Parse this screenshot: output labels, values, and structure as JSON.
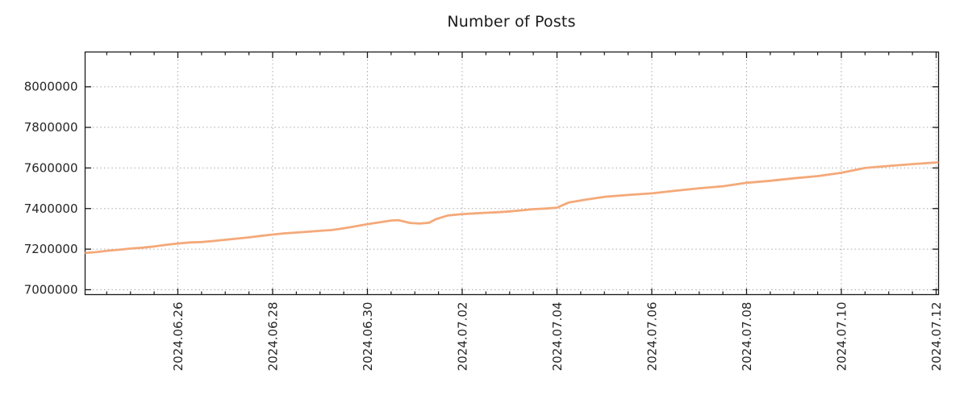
{
  "chart_data": {
    "type": "line",
    "title": "Number of Posts",
    "legend": {
      "show": false
    },
    "grid": {
      "show": true,
      "style": "dotted",
      "color": "#a8a8a8"
    },
    "axis_color": "#1a1a1a",
    "x_axis": {
      "unit": "days since 2024-06-24 00:00",
      "range": [
        0.043,
        18.051
      ],
      "minor_tick_step_days": 0.5,
      "major_ticks": [
        {
          "t": 2,
          "label": "2024.06.26"
        },
        {
          "t": 4,
          "label": "2024.06.28"
        },
        {
          "t": 6,
          "label": "2024.06.30"
        },
        {
          "t": 8,
          "label": "2024.07.02"
        },
        {
          "t": 10,
          "label": "2024.07.04"
        },
        {
          "t": 12,
          "label": "2024.07.06"
        },
        {
          "t": 14,
          "label": "2024.07.08"
        },
        {
          "t": 16,
          "label": "2024.07.10"
        },
        {
          "t": 18,
          "label": "2024.07.12"
        }
      ]
    },
    "y_axis": {
      "range": [
        6976000,
        8171600
      ],
      "major_ticks": [
        {
          "v": 7000000,
          "label": "7000000"
        },
        {
          "v": 7200000,
          "label": "7200000"
        },
        {
          "v": 7400000,
          "label": "7400000"
        },
        {
          "v": 7600000,
          "label": "7600000"
        },
        {
          "v": 7800000,
          "label": "7800000"
        },
        {
          "v": 8000000,
          "label": "8000000"
        }
      ]
    },
    "series": [
      {
        "name": "Number of Posts",
        "color": "#f4a979",
        "points": [
          [
            0.04,
            7181000
          ],
          [
            0.3,
            7186000
          ],
          [
            0.55,
            7193000
          ],
          [
            0.8,
            7198000
          ],
          [
            1.0,
            7203000
          ],
          [
            1.25,
            7207000
          ],
          [
            1.5,
            7213000
          ],
          [
            1.75,
            7221000
          ],
          [
            2.0,
            7228000
          ],
          [
            2.25,
            7233000
          ],
          [
            2.5,
            7235000
          ],
          [
            2.75,
            7240000
          ],
          [
            3.0,
            7246000
          ],
          [
            3.25,
            7252000
          ],
          [
            3.5,
            7258000
          ],
          [
            3.75,
            7265000
          ],
          [
            4.0,
            7272000
          ],
          [
            4.25,
            7278000
          ],
          [
            4.5,
            7282000
          ],
          [
            4.75,
            7286000
          ],
          [
            5.0,
            7290000
          ],
          [
            5.25,
            7294000
          ],
          [
            5.5,
            7303000
          ],
          [
            5.75,
            7313000
          ],
          [
            6.0,
            7323000
          ],
          [
            6.25,
            7332000
          ],
          [
            6.5,
            7341000
          ],
          [
            6.65,
            7343000
          ],
          [
            6.9,
            7329000
          ],
          [
            7.1,
            7326000
          ],
          [
            7.3,
            7330000
          ],
          [
            7.45,
            7348000
          ],
          [
            7.7,
            7366000
          ],
          [
            8.0,
            7373000
          ],
          [
            8.25,
            7376000
          ],
          [
            8.5,
            7379000
          ],
          [
            8.75,
            7382000
          ],
          [
            9.0,
            7386000
          ],
          [
            9.25,
            7391000
          ],
          [
            9.5,
            7397000
          ],
          [
            9.75,
            7400000
          ],
          [
            10.0,
            7404000
          ],
          [
            10.1,
            7415000
          ],
          [
            10.25,
            7430000
          ],
          [
            10.4,
            7436000
          ],
          [
            10.6,
            7444000
          ],
          [
            11.0,
            7458000
          ],
          [
            11.5,
            7467000
          ],
          [
            12.0,
            7475000
          ],
          [
            12.5,
            7488000
          ],
          [
            13.0,
            7500000
          ],
          [
            13.5,
            7510000
          ],
          [
            14.0,
            7527000
          ],
          [
            14.5,
            7537000
          ],
          [
            15.0,
            7549000
          ],
          [
            15.5,
            7560000
          ],
          [
            16.0,
            7576000
          ],
          [
            16.5,
            7600000
          ],
          [
            17.0,
            7610000
          ],
          [
            17.5,
            7619000
          ],
          [
            18.0,
            7627000
          ],
          [
            18.05,
            7629000
          ]
        ]
      }
    ]
  }
}
